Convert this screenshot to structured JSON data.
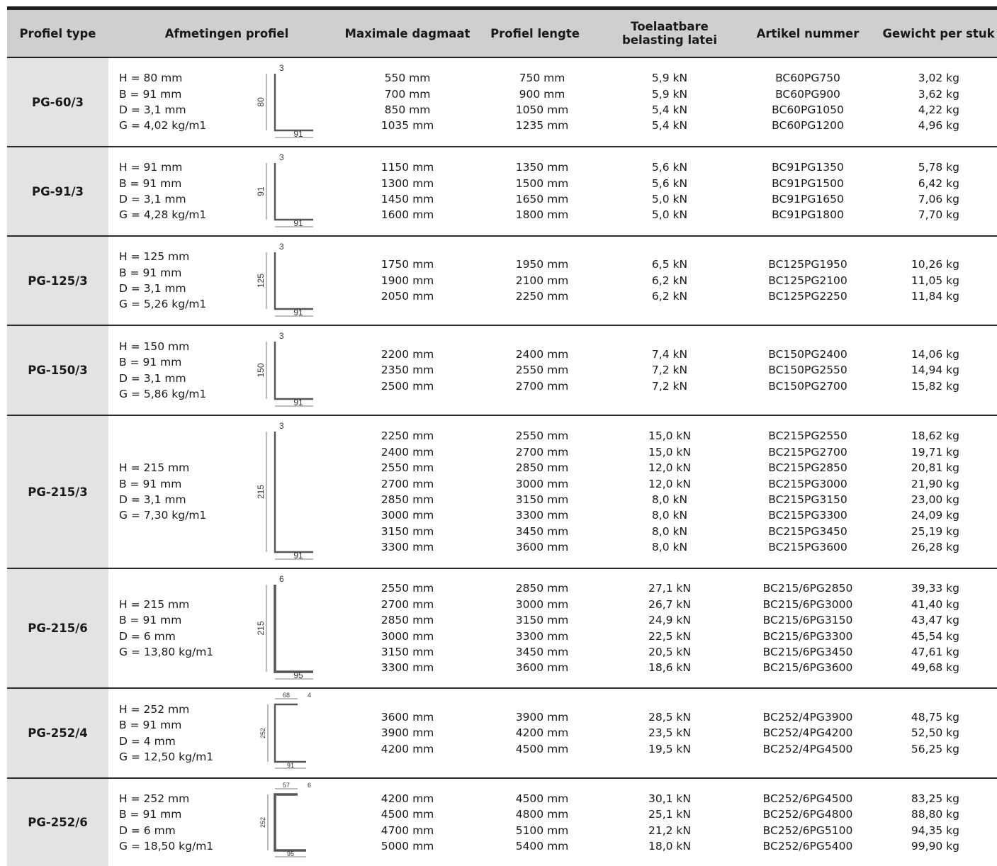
{
  "header": {
    "type": "Profiel type",
    "dimensions": "Afmetingen profiel",
    "max_span": "Maximale dagmaat",
    "length": "Profiel lengte",
    "load_line1": "Toelaatbare",
    "load_line2": "belasting latei",
    "article": "Artikel nummer",
    "weight": "Gewicht per stuk"
  },
  "rows": [
    {
      "type": "PG-60/3",
      "dims": [
        "H = 80 mm",
        "B = 91 mm",
        "D = 3,1 mm",
        "G = 4,02 kg/m1"
      ],
      "drawing": {
        "shape": "L-profile",
        "height_label": "80",
        "width_label": "91",
        "thickness_label": "3"
      },
      "spans": [
        "550 mm",
        "700 mm",
        "850 mm",
        "1035 mm"
      ],
      "lengths": [
        "750 mm",
        "900 mm",
        "1050 mm",
        "1235 mm"
      ],
      "loads": [
        "5,9 kN",
        "5,9 kN",
        "5,4 kN",
        "5,4 kN"
      ],
      "articles": [
        "BC60PG750",
        "BC60PG900",
        "BC60PG1050",
        "BC60PG1200"
      ],
      "weights": [
        "3,02 kg",
        "3,62 kg",
        "4,22 kg",
        "4,96 kg"
      ]
    },
    {
      "type": "PG-91/3",
      "dims": [
        "H = 91 mm",
        "B = 91 mm",
        "D = 3,1 mm",
        "G = 4,28 kg/m1"
      ],
      "drawing": {
        "shape": "L-profile",
        "height_label": "91",
        "width_label": "91",
        "thickness_label": "3"
      },
      "spans": [
        "1150 mm",
        "1300 mm",
        "1450 mm",
        "1600 mm"
      ],
      "lengths": [
        "1350 mm",
        "1500 mm",
        "1650 mm",
        "1800 mm"
      ],
      "loads": [
        "5,6 kN",
        "5,6 kN",
        "5,0 kN",
        "5,0 kN"
      ],
      "articles": [
        "BC91PG1350",
        "BC91PG1500",
        "BC91PG1650",
        "BC91PG1800"
      ],
      "weights": [
        "5,78 kg",
        "6,42 kg",
        "7,06 kg",
        "7,70 kg"
      ]
    },
    {
      "type": "PG-125/3",
      "dims": [
        "H = 125 mm",
        "B = 91 mm",
        "D = 3,1 mm",
        "G = 5,26 kg/m1"
      ],
      "drawing": {
        "shape": "L-profile",
        "height_label": "125",
        "width_label": "91",
        "thickness_label": "3"
      },
      "spans": [
        "1750 mm",
        "1900 mm",
        "2050 mm"
      ],
      "lengths": [
        "1950 mm",
        "2100 mm",
        "2250 mm"
      ],
      "loads": [
        "6,5 kN",
        "6,2 kN",
        "6,2 kN"
      ],
      "articles": [
        "BC125PG1950",
        "BC125PG2100",
        "BC125PG2250"
      ],
      "weights": [
        "10,26 kg",
        "11,05 kg",
        "11,84 kg"
      ]
    },
    {
      "type": "PG-150/3",
      "dims": [
        "H = 150 mm",
        "B = 91 mm",
        "D = 3,1 mm",
        "G = 5,86 kg/m1"
      ],
      "drawing": {
        "shape": "L-profile",
        "height_label": "150",
        "width_label": "91",
        "thickness_label": "3"
      },
      "spans": [
        "2200 mm",
        "2350 mm",
        "2500 mm"
      ],
      "lengths": [
        "2400 mm",
        "2550 mm",
        "2700 mm"
      ],
      "loads": [
        "7,4 kN",
        "7,2 kN",
        "7,2 kN"
      ],
      "articles": [
        "BC150PG2400",
        "BC150PG2550",
        "BC150PG2700"
      ],
      "weights": [
        "14,06 kg",
        "14,94 kg",
        "15,82 kg"
      ]
    },
    {
      "type": "PG-215/3",
      "dims": [
        "H = 215 mm",
        "B = 91 mm",
        "D = 3,1 mm",
        "G = 7,30 kg/m1"
      ],
      "drawing": {
        "shape": "L-profile",
        "height_label": "215",
        "width_label": "91",
        "thickness_label": "3"
      },
      "spans": [
        "2250 mm",
        "2400 mm",
        "2550 mm",
        "2700 mm",
        "2850 mm",
        "3000 mm",
        "3150 mm",
        "3300 mm"
      ],
      "lengths": [
        "2550 mm",
        "2700 mm",
        "2850 mm",
        "3000 mm",
        "3150 mm",
        "3300 mm",
        "3450 mm",
        "3600 mm"
      ],
      "loads": [
        "15,0 kN",
        "15,0 kN",
        "12,0 kN",
        "12,0 kN",
        "8,0 kN",
        "8,0 kN",
        "8,0 kN",
        "8,0 kN"
      ],
      "articles": [
        "BC215PG2550",
        "BC215PG2700",
        "BC215PG2850",
        "BC215PG3000",
        "BC215PG3150",
        "BC215PG3300",
        "BC215PG3450",
        "BC215PG3600"
      ],
      "weights": [
        "18,62 kg",
        "19,71 kg",
        "20,81 kg",
        "21,90 kg",
        "23,00 kg",
        "24,09 kg",
        "25,19 kg",
        "26,28 kg"
      ]
    },
    {
      "type": "PG-215/6",
      "dims": [
        "H = 215 mm",
        "B = 91 mm",
        "D = 6 mm",
        "G = 13,80 kg/m1"
      ],
      "drawing": {
        "shape": "L-profile",
        "height_label": "215",
        "width_label": "95",
        "thickness_label": "6"
      },
      "spans": [
        "2550 mm",
        "2700 mm",
        "2850 mm",
        "3000 mm",
        "3150 mm",
        "3300 mm"
      ],
      "lengths": [
        "2850 mm",
        "3000 mm",
        "3150 mm",
        "3300 mm",
        "3450 mm",
        "3600 mm"
      ],
      "loads": [
        "27,1 kN",
        "26,7 kN",
        "24,9 kN",
        "22,5 kN",
        "20,5 kN",
        "18,6 kN"
      ],
      "articles": [
        "BC215/6PG2850",
        "BC215/6PG3000",
        "BC215/6PG3150",
        "BC215/6PG3300",
        "BC215/6PG3450",
        "BC215/6PG3600"
      ],
      "weights": [
        "39,33 kg",
        "41,40 kg",
        "43,47 kg",
        "45,54 kg",
        "47,61 kg",
        "49,68 kg"
      ]
    },
    {
      "type": "PG-252/4",
      "dims": [
        "H = 252 mm",
        "B = 91 mm",
        "D = 4 mm",
        "G = 12,50 kg/m1"
      ],
      "drawing": {
        "shape": "C-profile",
        "height_label": "252",
        "width_label": "91",
        "thickness_label": "4",
        "top_label": "68"
      },
      "spans": [
        "3600 mm",
        "3900 mm",
        "4200 mm"
      ],
      "lengths": [
        "3900 mm",
        "4200 mm",
        "4500 mm"
      ],
      "loads": [
        "28,5 kN",
        "23,5 kN",
        "19,5 kN"
      ],
      "articles": [
        "BC252/4PG3900",
        "BC252/4PG4200",
        "BC252/4PG4500"
      ],
      "weights": [
        "48,75 kg",
        "52,50 kg",
        "56,25 kg"
      ]
    },
    {
      "type": "PG-252/6",
      "dims": [
        "H = 252 mm",
        "B = 91 mm",
        "D = 6 mm",
        "G = 18,50 kg/m1"
      ],
      "drawing": {
        "shape": "C-profile",
        "height_label": "252",
        "width_label": "95",
        "thickness_label": "6",
        "top_label": "57"
      },
      "spans": [
        "4200 mm",
        "4500 mm",
        "4700 mm",
        "5000 mm"
      ],
      "lengths": [
        "4500 mm",
        "4800 mm",
        "5100 mm",
        "5400 mm"
      ],
      "loads": [
        "30,1 kN",
        "25,1 kN",
        "21,2 kN",
        "18,0 kN"
      ],
      "articles": [
        "BC252/6PG4500",
        "BC252/6PG4800",
        "BC252/6PG5100",
        "BC252/6PG5400"
      ],
      "weights": [
        "83,25 kg",
        "88,80 kg",
        "94,35 kg",
        "99,90 kg"
      ]
    }
  ]
}
